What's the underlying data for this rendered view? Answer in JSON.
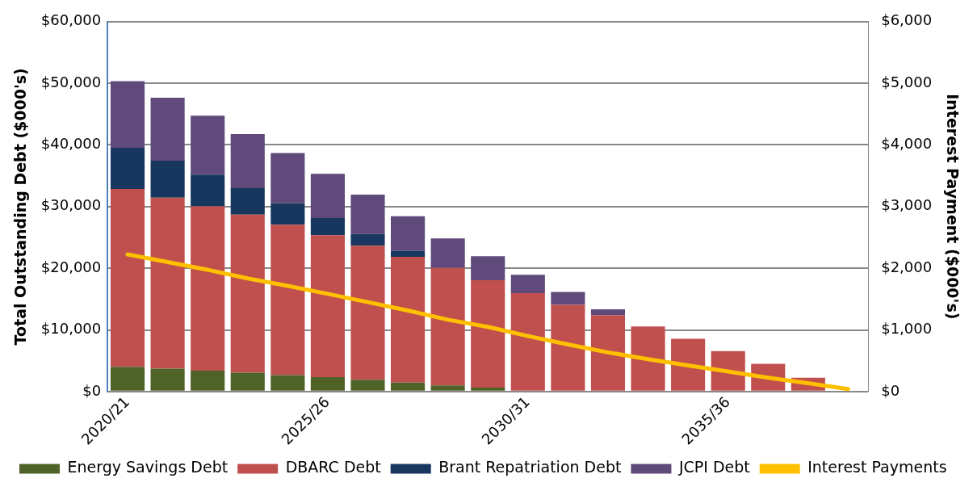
{
  "chart_data": {
    "type": "bar",
    "stacked": true,
    "ylabel": "Total Outstanding Debt ($000's)",
    "y2label": "Interest Payment ($000's)",
    "categories": [
      "2020/21",
      null,
      null,
      null,
      null,
      "2025/26",
      null,
      null,
      null,
      null,
      "2030/31",
      null,
      null,
      null,
      null,
      "2035/36",
      null,
      null,
      null
    ],
    "series": [
      {
        "name": "Energy Savings Debt",
        "color": "#4f6228",
        "values": [
          4000,
          3700,
          3400,
          3050,
          2650,
          2350,
          1900,
          1450,
          1000,
          650,
          0,
          0,
          0,
          0,
          0,
          0,
          0,
          0,
          0
        ]
      },
      {
        "name": "DBARC Debt",
        "color": "#c0504d",
        "values": [
          28850,
          27750,
          26650,
          25650,
          24400,
          23000,
          21750,
          20400,
          19050,
          17400,
          15950,
          14050,
          12350,
          10550,
          8550,
          6550,
          4500,
          2250,
          0
        ]
      },
      {
        "name": "Brant Repatriation Debt",
        "color": "#17375e",
        "values": [
          6700,
          6000,
          5150,
          4300,
          3500,
          2800,
          1900,
          1000,
          0,
          0,
          0,
          0,
          0,
          0,
          0,
          0,
          0,
          0,
          0
        ]
      },
      {
        "name": "JCPI Debt",
        "color": "#604a7b",
        "values": [
          10800,
          10200,
          9550,
          8750,
          8150,
          7150,
          6400,
          5600,
          4800,
          3900,
          3000,
          2100,
          1000,
          0,
          0,
          0,
          0,
          0,
          0
        ]
      },
      {
        "name": "Interest Payments",
        "type": "line",
        "axis": "y2",
        "color": "#ffc000",
        "values": [
          2225,
          2100,
          1975,
          1835,
          1715,
          1585,
          1450,
          1315,
          1165,
          1050,
          900,
          765,
          635,
          525,
          425,
          325,
          225,
          135,
          40
        ]
      }
    ],
    "ylim": [
      0,
      60000
    ],
    "yticks": [
      {
        "value": 0,
        "label": "$0"
      },
      {
        "value": 10000,
        "label": "$10,000"
      },
      {
        "value": 20000,
        "label": "$20,000"
      },
      {
        "value": 30000,
        "label": "$30,000"
      },
      {
        "value": 40000,
        "label": "$40,000"
      },
      {
        "value": 50000,
        "label": "$50,000"
      },
      {
        "value": 60000,
        "label": "$60,000"
      }
    ],
    "y2lim": [
      0,
      6000
    ],
    "y2ticks": [
      {
        "value": 0,
        "label": "$0"
      },
      {
        "value": 1000,
        "label": "$1,000"
      },
      {
        "value": 2000,
        "label": "$2,000"
      },
      {
        "value": 3000,
        "label": "$3,000"
      },
      {
        "value": 4000,
        "label": "$4,000"
      },
      {
        "value": 5000,
        "label": "$5,000"
      },
      {
        "value": 6000,
        "label": "$6,000"
      }
    ],
    "grid": "y",
    "legend": "bottom",
    "marker": "none",
    "line_style": "solid"
  }
}
